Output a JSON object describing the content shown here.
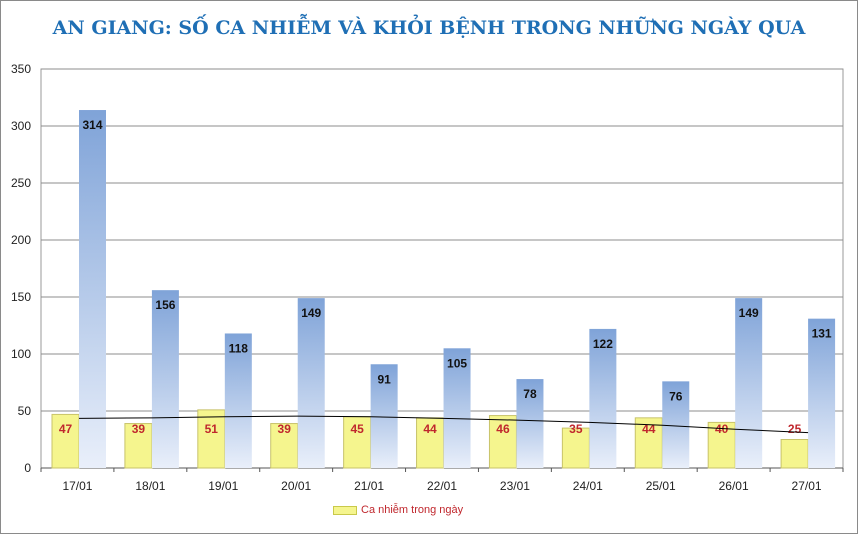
{
  "chart_data": {
    "type": "bar",
    "title": "AN GIANG: SỐ CA NHIỄM VÀ KHỎI BỆNH TRONG NHỮNG NGÀY QUA",
    "categories": [
      "17/01",
      "18/01",
      "19/01",
      "20/01",
      "21/01",
      "22/01",
      "23/01",
      "24/01",
      "25/01",
      "26/01",
      "27/01"
    ],
    "series": [
      {
        "name": "Ca nhiễm trong ngày",
        "values": [
          47,
          39,
          51,
          39,
          45,
          44,
          46,
          35,
          44,
          40,
          25
        ],
        "color": "#f5f58e",
        "label_color": "#c0272d"
      },
      {
        "values": [
          314,
          156,
          118,
          149,
          91,
          105,
          78,
          122,
          76,
          149,
          131
        ],
        "color": "#7fa3d8"
      }
    ],
    "trendline": {
      "values": [
        43.5,
        44.0,
        45.0,
        45.5,
        45.0,
        43.5,
        42.0,
        40.0,
        37.5,
        34.0,
        31.0
      ],
      "color": "#000000"
    },
    "ylim": [
      0,
      350
    ],
    "yticks": [
      0,
      50,
      100,
      150,
      200,
      250,
      300,
      350
    ],
    "grid": true,
    "legend_position": "bottom-left"
  }
}
